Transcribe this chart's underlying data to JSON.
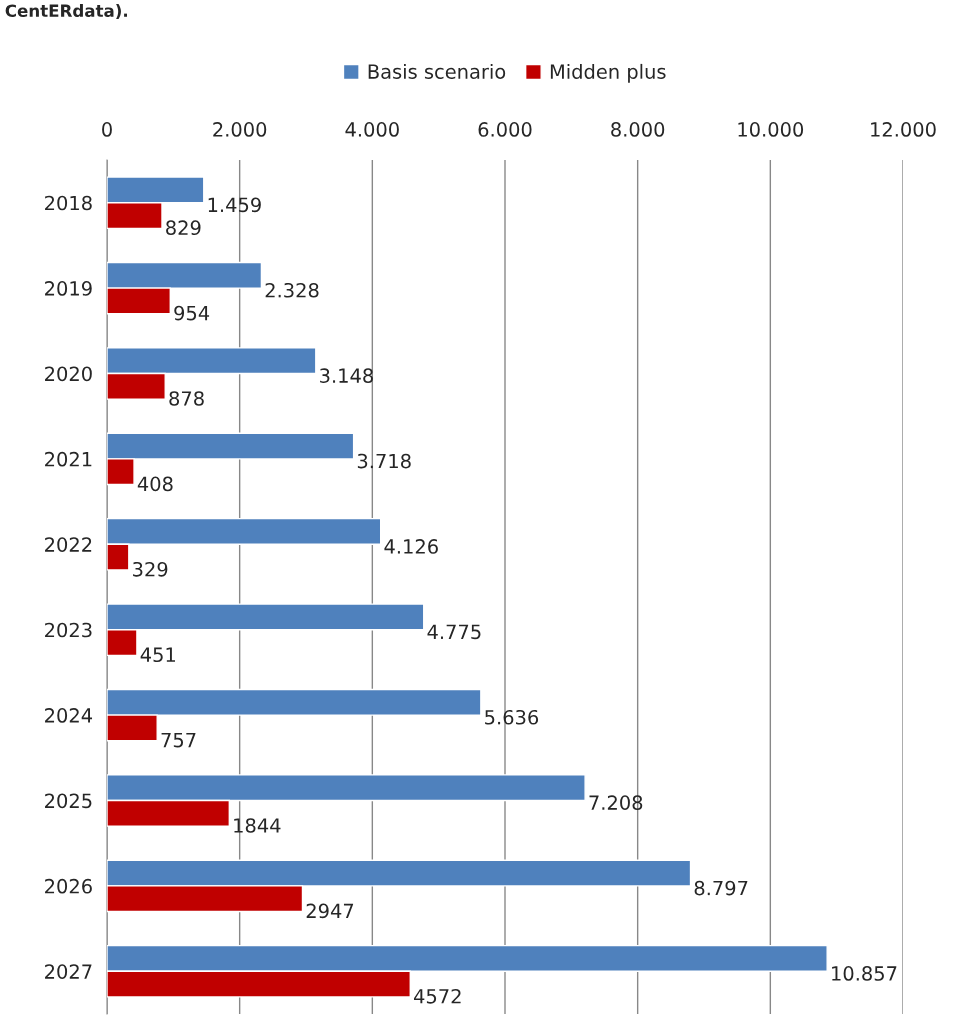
{
  "chart_data": {
    "type": "bar",
    "orientation": "horizontal",
    "annotations": [
      "CentERdata)."
    ],
    "categories": [
      "2018",
      "2019",
      "2020",
      "2021",
      "2022",
      "2023",
      "2024",
      "2025",
      "2026",
      "2027"
    ],
    "series": [
      {
        "name": "Basis scenario",
        "color": "#4f81bd",
        "values": [
          1459,
          2328,
          3148,
          3718,
          4126,
          4775,
          5636,
          7208,
          8797,
          10857
        ],
        "value_labels": [
          "1.459",
          "2.328",
          "3.148",
          "3.718",
          "4.126",
          "4.775",
          "5.636",
          "7.208",
          "8.797",
          "10.857"
        ]
      },
      {
        "name": "Midden plus",
        "color": "#c00000",
        "values": [
          829,
          954,
          878,
          408,
          329,
          451,
          757,
          1844,
          2947,
          4572
        ],
        "value_labels": [
          "829",
          "954",
          "878",
          "408",
          "329",
          "451",
          "757",
          "1844",
          "2947",
          "4572"
        ]
      }
    ],
    "xlim": [
      0,
      12000
    ],
    "xticks": [
      0,
      {
        "value": 2000,
        "label": "2.000"
      },
      {
        "value": 4000,
        "label": "4.000"
      },
      {
        "value": 6000,
        "label": "6.000"
      },
      {
        "value": 8000,
        "label": "8.000"
      },
      {
        "value": 10000,
        "label": "10.000"
      },
      {
        "value": 12000,
        "label": "12.000"
      }
    ],
    "grid": "x",
    "legend": "top"
  }
}
